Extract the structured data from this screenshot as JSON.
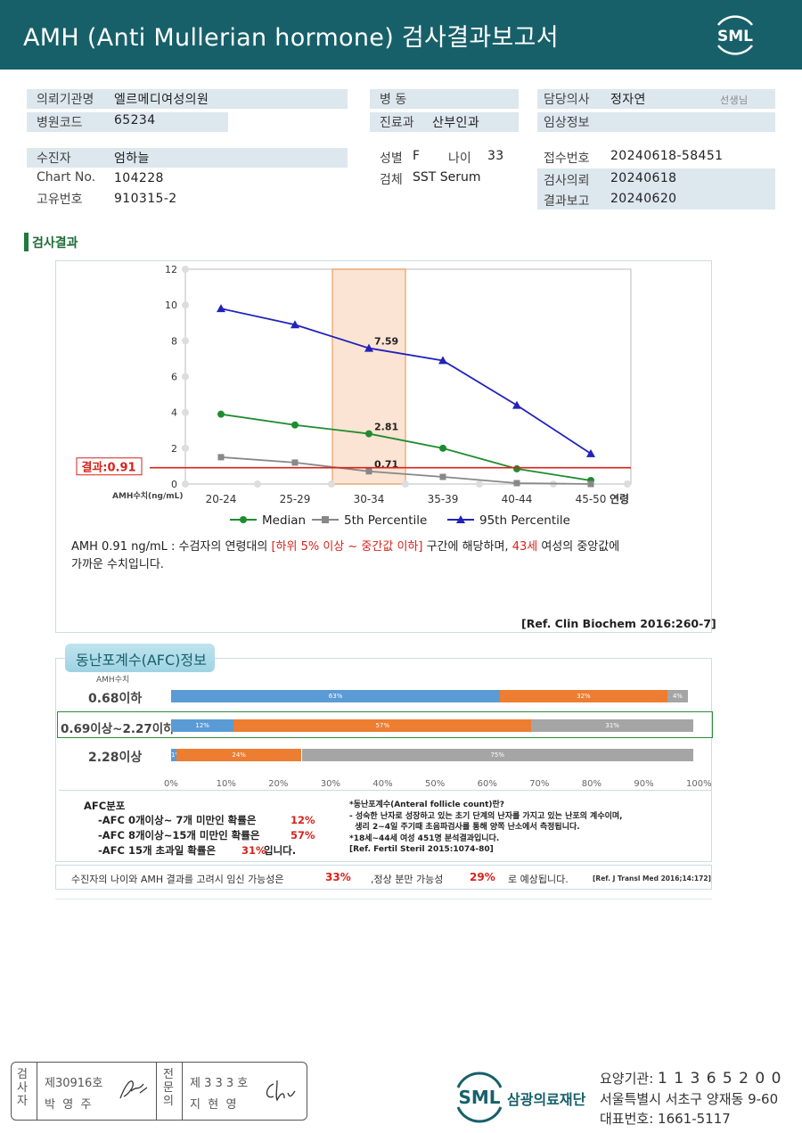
{
  "header": {
    "title": "AMH (Anti Mullerian hormone) 검사결과보고서",
    "logo_text": "SML"
  },
  "info": {
    "institution_label": "의뢰기관명",
    "institution": "엘르메디여성의원",
    "hospital_code_label": "병원코드",
    "hospital_code": "65234",
    "ward_label": "병 동",
    "ward": "",
    "dept_label": "진료과",
    "dept": "산부인과",
    "doctor_label": "담당의사",
    "doctor": "정자연",
    "doctor_suffix": "선생님",
    "clinical_label": "임상정보",
    "clinical": "",
    "patient_label": "수진자",
    "patient": "엄하늘",
    "chart_label": "Chart No.",
    "chart": "104228",
    "id_label": "고유번호",
    "id": "910315-2",
    "sex_label": "성별",
    "sex": "F",
    "age_label": "나이",
    "age": "33",
    "specimen_label": "검체",
    "specimen": "SST Serum",
    "reception_label": "접수번호",
    "reception": "20240618-58451",
    "request_label": "검사의뢰",
    "request": "20240618",
    "report_label": "결과보고",
    "report": "20240620"
  },
  "section_title": "검사결과",
  "chart_data": {
    "type": "line",
    "categories": [
      "20-24",
      "25-29",
      "30-34",
      "35-39",
      "40-44",
      "45-50"
    ],
    "xlabel": "연령",
    "ylabel": "AMH수치(ng/mL)",
    "ylim": [
      0,
      12
    ],
    "yticks": [
      0,
      2,
      4,
      6,
      8,
      10,
      12
    ],
    "highlight_category": "30-34",
    "result_line": {
      "value": 0.91,
      "label": "결과:0.91"
    },
    "series": [
      {
        "name": "Median",
        "color": "#1e8c2e",
        "marker": "circle",
        "values": [
          3.9,
          3.3,
          2.81,
          2.0,
          0.85,
          0.2
        ]
      },
      {
        "name": "5th Percentile",
        "color": "#888888",
        "marker": "square",
        "values": [
          1.5,
          1.2,
          0.71,
          0.4,
          0.05,
          0.0
        ]
      },
      {
        "name": "95th Percentile",
        "color": "#2222bb",
        "marker": "triangle",
        "values": [
          9.8,
          8.9,
          7.59,
          6.9,
          4.4,
          1.7
        ]
      }
    ],
    "data_labels": [
      "7.59",
      "2.81",
      "0.71"
    ]
  },
  "amh_desc": {
    "line1_a": "AMH  0.91 ng/mL : 수검자의 연령대의 ",
    "line1_red": "[하위 5% 이상 ~ 중간값 이하]",
    "line1_b": "  구간에 해당하며, ",
    "line1_red2": "43세",
    "line1_c": " 여성의 중앙값에",
    "line2": "가까운 수치입니다.",
    "ref": "[Ref. Clin Biochem 2016:260-7]"
  },
  "afc": {
    "tab_title": "동난포계수(AFC)정보",
    "amh_axis_label": "AMH수치",
    "rows": [
      {
        "label": "0.68이하",
        "values": [
          63,
          32,
          4
        ],
        "texts": [
          "63%",
          "32%",
          "4%"
        ]
      },
      {
        "label": "0.69이상~2.27이하",
        "values": [
          12,
          57,
          31
        ],
        "texts": [
          "12%",
          "57%",
          "31%"
        ]
      },
      {
        "label": "2.28이상",
        "values": [
          1,
          24,
          75
        ],
        "texts": [
          "1%",
          "24%",
          "75%"
        ]
      }
    ],
    "colors": [
      "#5b9bd5",
      "#ed7d31",
      "#a5a5a5"
    ],
    "x_ticks": [
      "0%",
      "10%",
      "20%",
      "30%",
      "40%",
      "50%",
      "60%",
      "70%",
      "80%",
      "90%",
      "100%"
    ],
    "dist_title": "AFC분포",
    "dist_lines": [
      {
        "text": "-AFC  0개이상~ 7개 미만인 확률은",
        "pct": "12%",
        "tail": ""
      },
      {
        "text": "-AFC  8개이상~15개 미만인 확률은",
        "pct": "57%",
        "tail": ""
      },
      {
        "text": "-AFC  15개 초과일 확률은",
        "pct": "31%",
        "tail": " 입니다."
      }
    ],
    "notes": [
      "*동난포계수(Anteral follicle count)란?",
      "- 성숙한 난자로 성장하고 있는 초기 단계의 난자를 가지고 있는 난포의 계수이며,",
      "  생리 2~4일 주기때 초음파검사를 통해 양쪽 난소에서 측정됩니다.",
      "*18세~44세 여성 451명 분석결과입니다.",
      "[Ref. Fertil Steril 2015:1074-80]"
    ]
  },
  "pregnancy": {
    "text_a": "수진자의  나이와 AMH 결과를 고려시 임신 가능성은",
    "pct1": "33%",
    "text_b": ",정상 분만 가능성",
    "pct2": "29%",
    "text_c": "로 예상됩니다.",
    "ref": "[Ref. J Transl Med 2016;14:172]"
  },
  "footer": {
    "tester_vert": "검사자",
    "tester_no": "제30916호",
    "tester_name": "박  영  주",
    "specialist_vert": "전문의",
    "specialist_no": "제 3 3 3 호",
    "specialist_name": "지  현  영",
    "org_name": "삼광의료재단",
    "org_logo": "SML",
    "yoyang_label": "요양기관",
    "yoyang": "1 1 3 6 5 2 0 0",
    "address": "서울특별시 서초구 양재동 9-60",
    "phone_label": "대표번호",
    "phone": "1661-5117"
  }
}
